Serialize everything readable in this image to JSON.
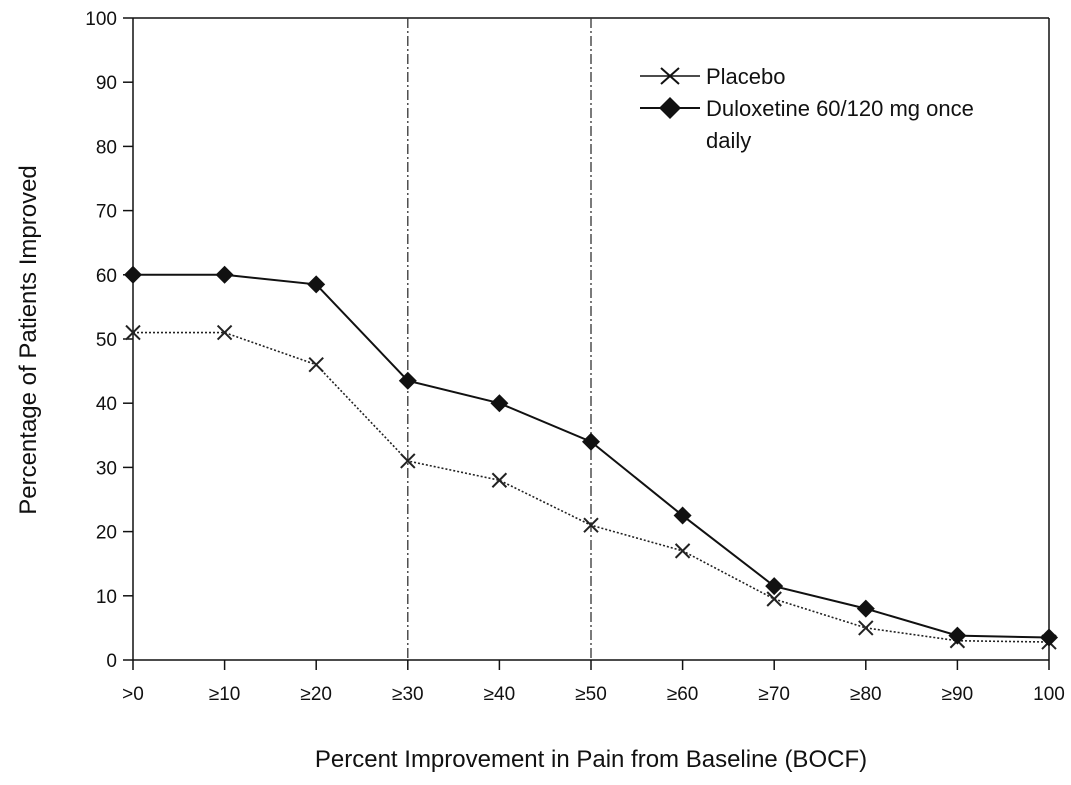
{
  "chart_data": {
    "type": "line",
    "xlabel": "Percent Improvement in Pain from Baseline (BOCF)",
    "ylabel": "Percentage of Patients Improved",
    "categories": [
      ">0",
      "≥10",
      "≥20",
      "≥30",
      "≥40",
      "≥50",
      "≥60",
      "≥70",
      "≥80",
      "≥90",
      "100"
    ],
    "ylim": [
      0,
      100
    ],
    "yticks": [
      0,
      10,
      20,
      30,
      40,
      50,
      60,
      70,
      80,
      90,
      100
    ],
    "reference_lines_at": [
      "≥30",
      "≥50"
    ],
    "legend": {
      "position": "top-right",
      "entries": [
        "Placebo",
        "Duloxetine 60/120 mg once",
        "daily"
      ]
    },
    "series": [
      {
        "name": "Placebo",
        "marker": "x",
        "line_style": "dotted",
        "color": "#222222",
        "values": [
          51,
          51,
          46,
          31,
          28,
          21,
          17,
          9.5,
          5,
          3,
          2.8
        ]
      },
      {
        "name": "Duloxetine 60/120 mg once daily",
        "marker": "diamond",
        "line_style": "solid",
        "color": "#111111",
        "values": [
          60,
          60,
          58.5,
          43.5,
          40,
          34,
          22.5,
          11.5,
          8,
          3.8,
          3.5
        ]
      }
    ]
  }
}
